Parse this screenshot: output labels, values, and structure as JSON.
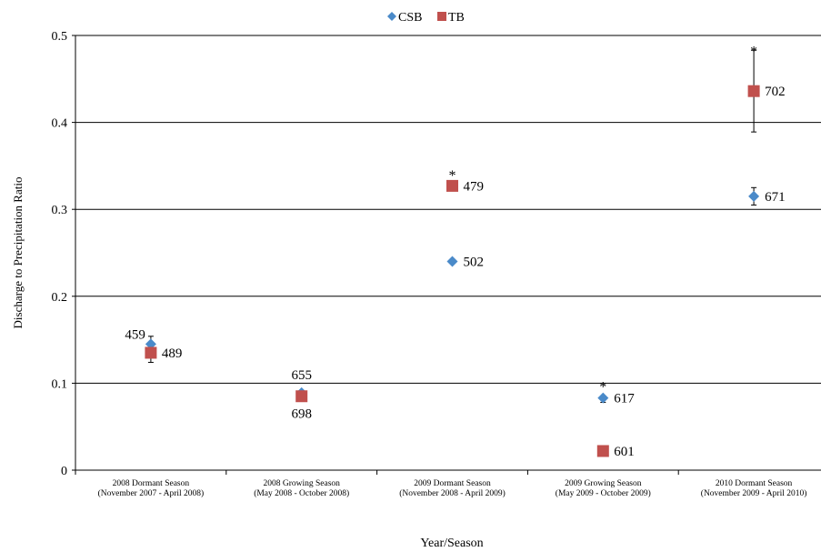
{
  "chart_data": {
    "type": "scatter",
    "xlabel": "Year/Season",
    "ylabel": "Discharge to Precipitation Ratio",
    "ylim": [
      0,
      0.5
    ],
    "yticks": [
      "0",
      "0.1",
      "0.2",
      "0.3",
      "0.4",
      "0.5"
    ],
    "grid": true,
    "legend_position": "top-center",
    "categories": [
      [
        "2008 Dormant Season",
        "(November 2007 - April 2008)"
      ],
      [
        "2008 Growing Season",
        "(May 2008 - October 2008)"
      ],
      [
        "2009 Dormant Season",
        "(November 2008 - April 2009)"
      ],
      [
        "2009 Growing Season",
        "(May 2009 - October 2009)"
      ],
      [
        "2010 Dormant Season",
        "(November 2009 - April 2010)"
      ]
    ],
    "series": [
      {
        "name": "CSB",
        "marker": "diamond",
        "color": "#4a8ac9",
        "values": [
          0.145,
          0.089,
          0.24,
          0.083,
          0.315
        ],
        "error_high": [
          0.154,
          null,
          null,
          null,
          0.325
        ],
        "error_low": [
          null,
          null,
          null,
          0.078,
          0.305
        ],
        "point_labels": [
          "459",
          "655",
          "502",
          "617",
          "671"
        ],
        "label_side": [
          "left-above",
          "above",
          "right",
          "right",
          "right"
        ]
      },
      {
        "name": "TB",
        "marker": "square",
        "color": "#c0504d",
        "values": [
          0.135,
          0.085,
          0.327,
          0.022,
          0.436
        ],
        "error_high": [
          null,
          null,
          null,
          null,
          0.483
        ],
        "error_low": [
          0.124,
          null,
          null,
          null,
          0.389
        ],
        "point_labels": [
          "489",
          "698",
          "479",
          "601",
          "702"
        ],
        "label_side": [
          "right",
          "below",
          "right",
          "right",
          "right"
        ]
      }
    ],
    "annotations": [
      {
        "text": "*",
        "category": 2,
        "y": 0.343
      },
      {
        "text": "*",
        "category": 3,
        "y": 0.1
      },
      {
        "text": "*",
        "category": 4,
        "y": 0.486
      }
    ]
  }
}
